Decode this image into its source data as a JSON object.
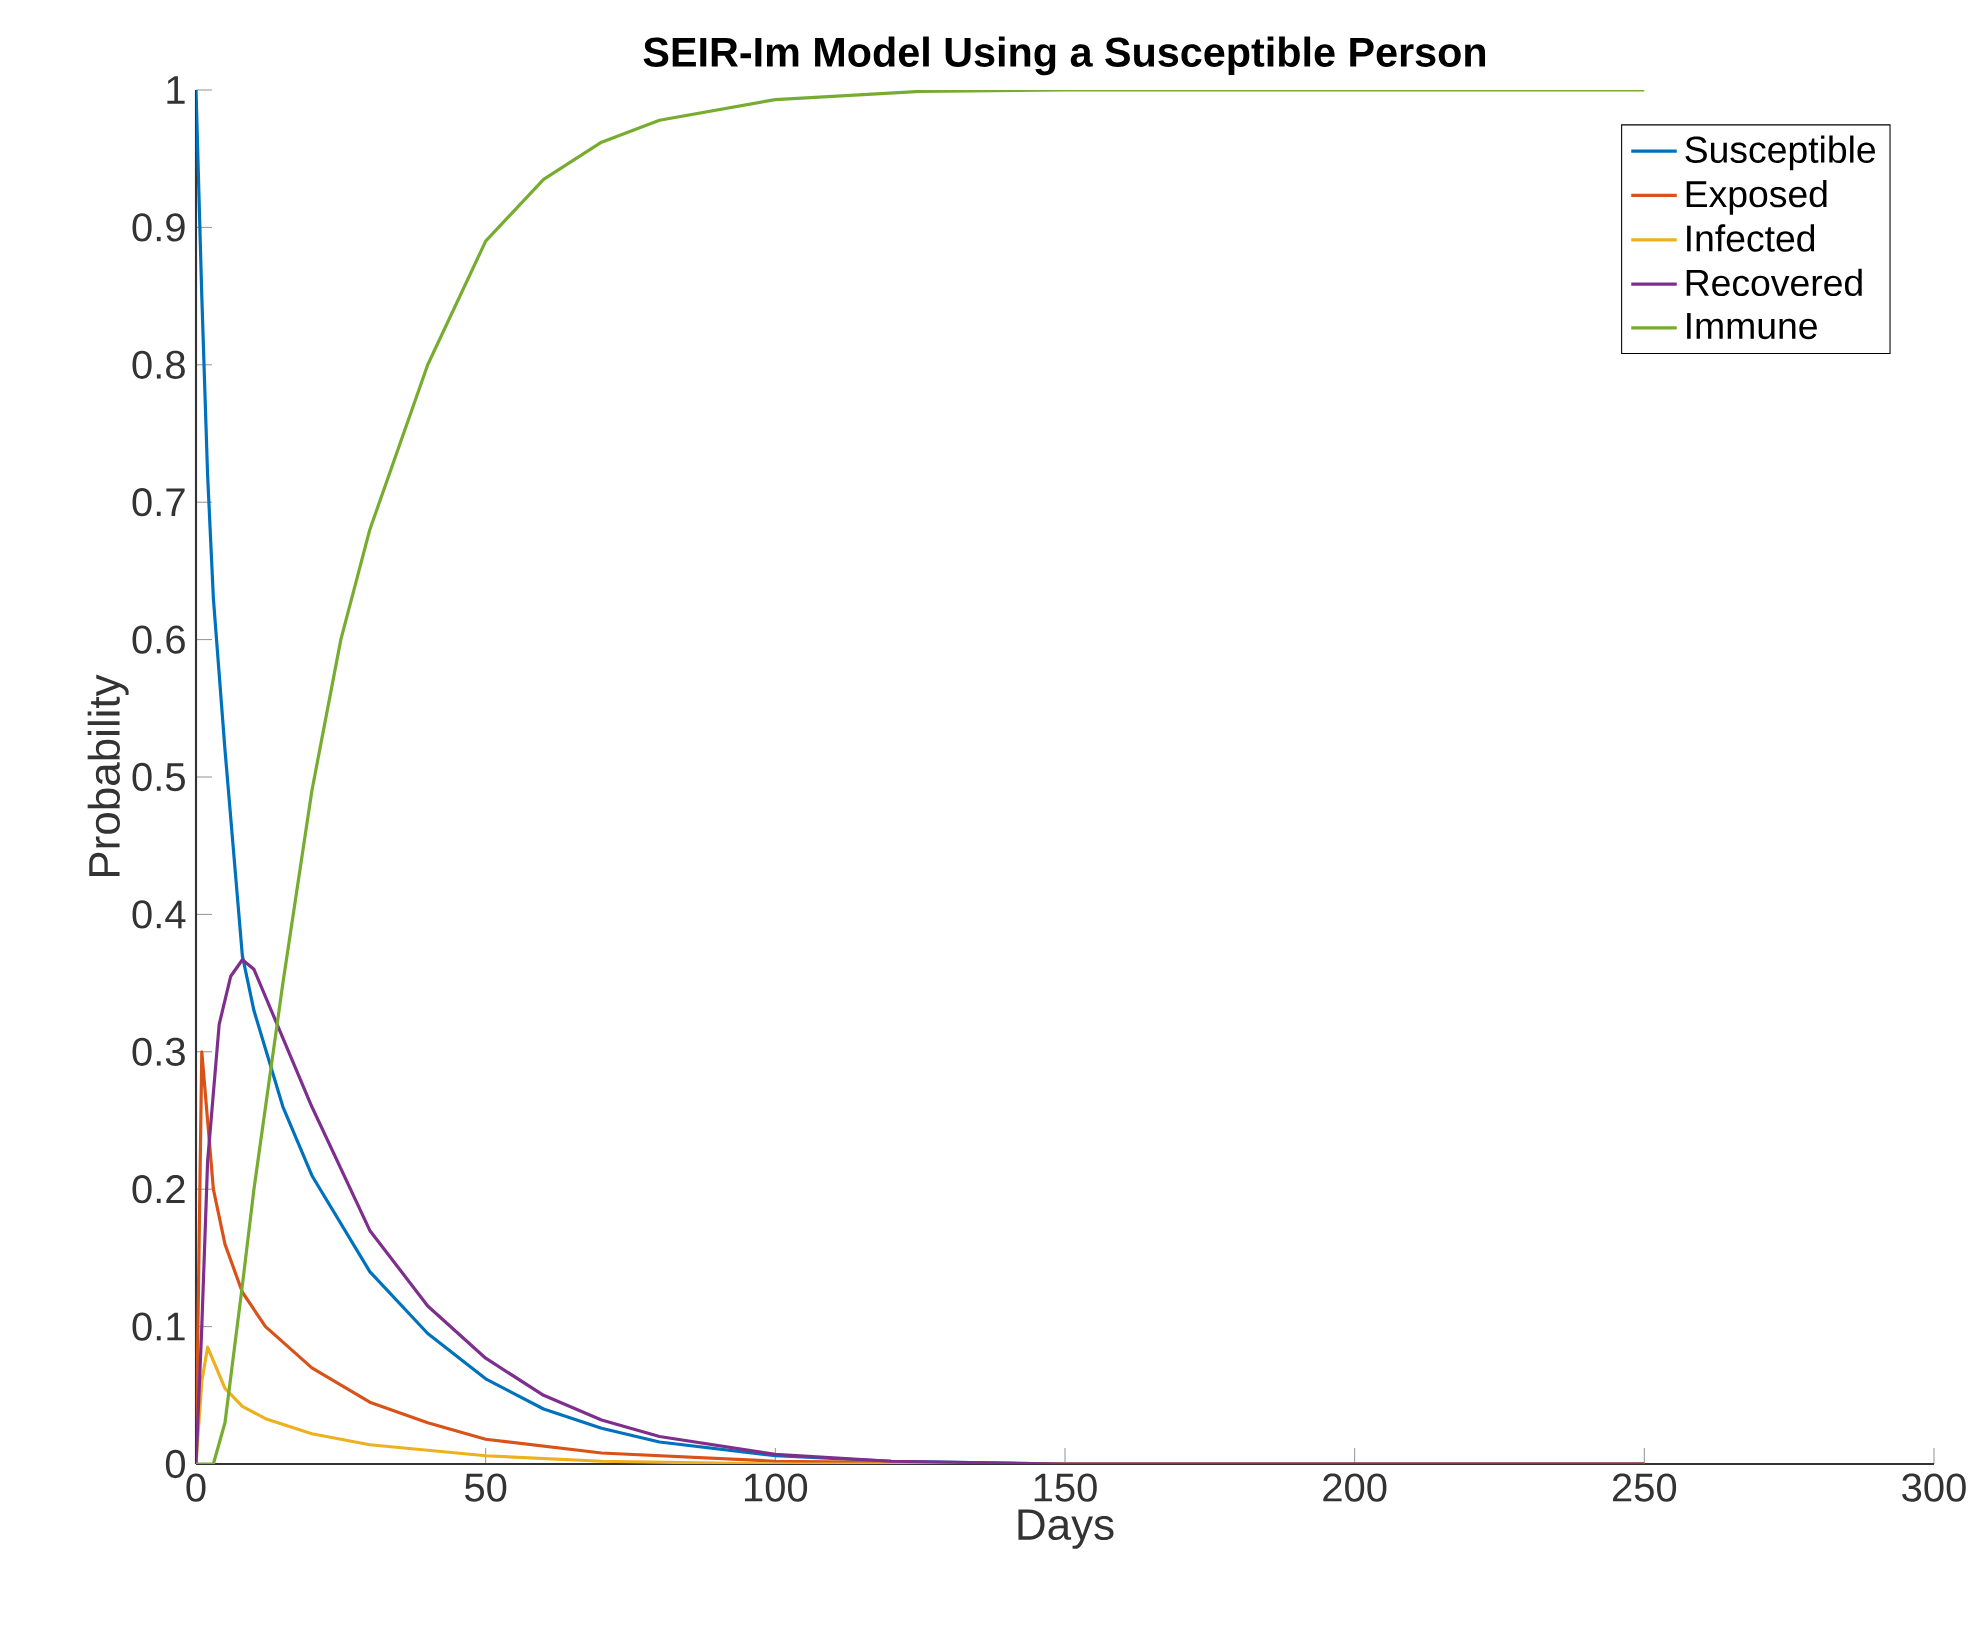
{
  "chart_data": {
    "type": "line",
    "title": "SEIR-Im Model Using a Susceptible Person",
    "xlabel": "Days",
    "ylabel": "Probability",
    "xlim": [
      0,
      300
    ],
    "xticks": [
      0,
      50,
      100,
      150,
      200,
      250,
      300
    ],
    "ylim": [
      0,
      1
    ],
    "yticks": [
      0,
      0.1,
      0.2,
      0.3,
      0.4,
      0.5,
      0.6,
      0.7,
      0.8,
      0.9,
      1
    ],
    "grid": false,
    "legend": "top right",
    "marker": "none",
    "line_style": "solid",
    "series": [
      {
        "name": "Susceptible",
        "color": "#0072bd",
        "x": [
          0,
          1,
          2,
          3,
          5,
          8,
          10,
          15,
          20,
          30,
          40,
          50,
          60,
          70,
          80,
          100,
          120,
          150,
          250
        ],
        "values": [
          1,
          0.85,
          0.72,
          0.63,
          0.52,
          0.37,
          0.33,
          0.26,
          0.21,
          0.14,
          0.095,
          0.062,
          0.04,
          0.026,
          0.016,
          0.006,
          0.002,
          0,
          0
        ]
      },
      {
        "name": "Exposed",
        "color": "#d95319",
        "x": [
          0,
          1,
          2,
          3,
          5,
          8,
          12,
          20,
          30,
          40,
          50,
          70,
          100,
          150,
          250
        ],
        "values": [
          0,
          0.3,
          0.25,
          0.2,
          0.16,
          0.125,
          0.1,
          0.07,
          0.045,
          0.03,
          0.018,
          0.008,
          0.002,
          0,
          0
        ]
      },
      {
        "name": "Infected",
        "color": "#edb120",
        "x": [
          0,
          1,
          2,
          3,
          5,
          8,
          12,
          20,
          30,
          50,
          70,
          100,
          250
        ],
        "values": [
          0,
          0.06,
          0.085,
          0.075,
          0.055,
          0.042,
          0.033,
          0.022,
          0.014,
          0.006,
          0.002,
          0,
          0
        ]
      },
      {
        "name": "Recovered",
        "color": "#7e2f8e",
        "x": [
          0,
          1,
          2,
          4,
          6,
          8,
          10,
          15,
          20,
          30,
          40,
          50,
          60,
          70,
          80,
          100,
          120,
          150,
          250
        ],
        "values": [
          0,
          0.1,
          0.22,
          0.32,
          0.355,
          0.367,
          0.36,
          0.31,
          0.26,
          0.17,
          0.115,
          0.077,
          0.05,
          0.032,
          0.02,
          0.007,
          0.002,
          0,
          0
        ]
      },
      {
        "name": "Immune",
        "color": "#77ac30",
        "x": [
          0,
          3,
          5,
          8,
          10,
          15,
          20,
          25,
          30,
          40,
          50,
          60,
          70,
          80,
          100,
          125,
          150,
          250
        ],
        "values": [
          0,
          0,
          0.03,
          0.13,
          0.2,
          0.35,
          0.49,
          0.6,
          0.68,
          0.8,
          0.89,
          0.935,
          0.962,
          0.978,
          0.993,
          0.999,
          1,
          1
        ]
      }
    ]
  }
}
